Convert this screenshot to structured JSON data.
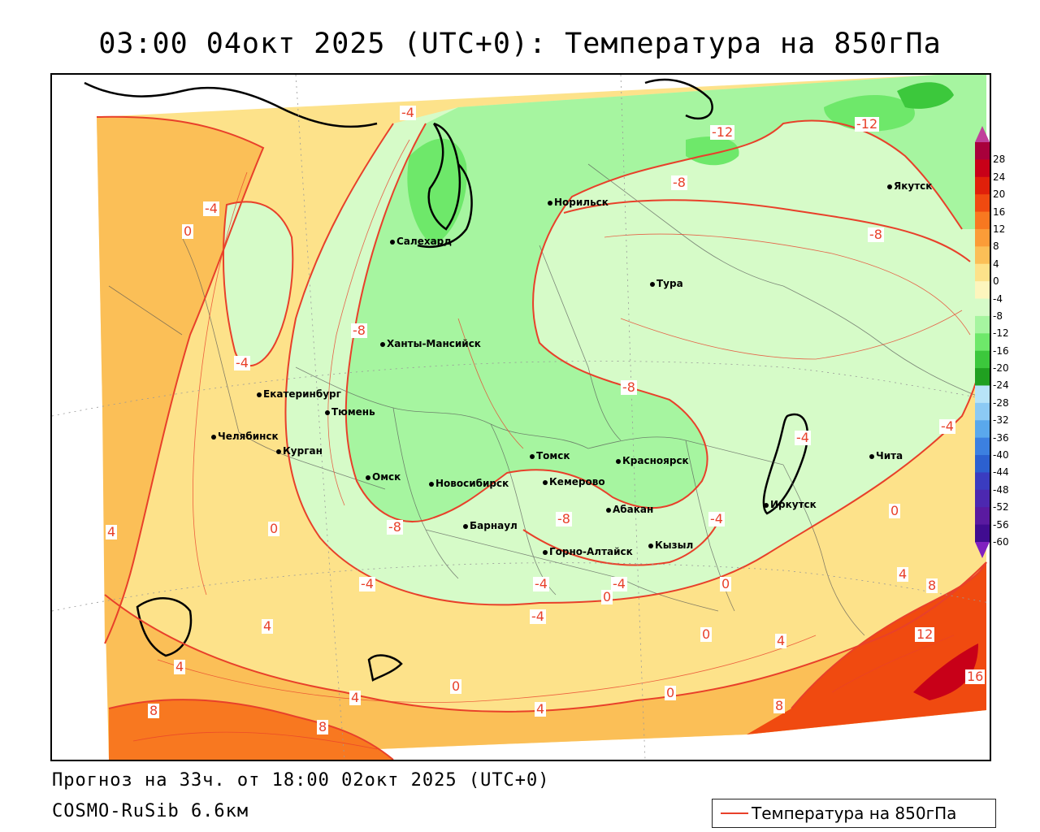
{
  "title": "03:00 04окт 2025 (UTC+0): Температура на 850гПа",
  "footer": {
    "forecast": "Прогноз на 33ч. от 18:00 02окт 2025 (UTC+0)",
    "model": "COSMO-RuSib 6.6км"
  },
  "legend": {
    "label": "Температура на 850гПа",
    "line_color": "#e8402a"
  },
  "colorbar": {
    "levels": [
      "28",
      "24",
      "20",
      "16",
      "12",
      "8",
      "4",
      "0",
      "-4",
      "-8",
      "-12",
      "-16",
      "-20",
      "-24",
      "-28",
      "-32",
      "-36",
      "-40",
      "-44",
      "-48",
      "-52",
      "-56",
      "-60"
    ],
    "colors": [
      "#a8003b",
      "#c80018",
      "#e0200a",
      "#f04a10",
      "#f87820",
      "#fb9c38",
      "#fbbf57",
      "#fde28a",
      "#fdf5bd",
      "#d6fbc8",
      "#a6f5a0",
      "#6ee86a",
      "#3cc83c",
      "#20a020",
      "#b8e4f8",
      "#8ccaf4",
      "#5aa8ec",
      "#3c80e0",
      "#2c60d0",
      "#3a3cc0",
      "#4c28b0",
      "#5a1aa0",
      "#400c90"
    ],
    "top_arrow_color": "#c0409a",
    "bottom_arrow_color": "#8020c0"
  },
  "cities": [
    {
      "name": "Норильск"
    },
    {
      "name": "Якутск"
    },
    {
      "name": "Салехард"
    },
    {
      "name": "Тура"
    },
    {
      "name": "Ханты-Мансийск"
    },
    {
      "name": "Екатеринбург"
    },
    {
      "name": "Тюмень"
    },
    {
      "name": "Челябинск"
    },
    {
      "name": "Курган"
    },
    {
      "name": "Омск"
    },
    {
      "name": "Томск"
    },
    {
      "name": "Красноярск"
    },
    {
      "name": "Новосибирск"
    },
    {
      "name": "Кемерово"
    },
    {
      "name": "Абакан"
    },
    {
      "name": "Барнаул"
    },
    {
      "name": "Горно-Алтайск"
    },
    {
      "name": "Кызыл"
    },
    {
      "name": "Иркутск"
    },
    {
      "name": "Чита"
    }
  ],
  "contour_labels": [
    "-4",
    "-12",
    "-12",
    "-8",
    "-8",
    "-4",
    "0",
    "-8",
    "-4",
    "-8",
    "-4",
    "-4",
    "4",
    "0",
    "-8",
    "-8",
    "-4",
    "-4",
    "0",
    "0",
    "-4",
    "-4",
    "4",
    "4",
    "4",
    "4",
    "0",
    "0",
    "8",
    "8",
    "8",
    "4",
    "0",
    "-4",
    "0",
    "4",
    "8",
    "12",
    "16"
  ]
}
